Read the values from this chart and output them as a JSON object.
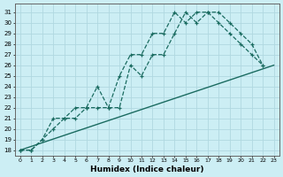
{
  "xlabel": "Humidex (Indice chaleur)",
  "bg_color": "#cceef4",
  "line_color": "#1a6b60",
  "grid_color": "#b0d8e0",
  "xlim": [
    -0.5,
    23.5
  ],
  "ylim": [
    17.5,
    31.8
  ],
  "xticks": [
    0,
    1,
    2,
    3,
    4,
    5,
    6,
    7,
    8,
    9,
    10,
    11,
    12,
    13,
    14,
    15,
    16,
    17,
    18,
    19,
    20,
    21,
    22,
    23
  ],
  "yticks": [
    18,
    19,
    20,
    21,
    22,
    23,
    24,
    25,
    26,
    27,
    28,
    29,
    30,
    31
  ],
  "series": [
    {
      "x": [
        0,
        23
      ],
      "y": [
        18,
        26
      ],
      "marker": false,
      "linestyle": "-"
    },
    {
      "x": [
        0,
        1,
        2,
        3,
        4,
        5,
        6,
        7,
        8,
        9,
        10,
        11,
        12,
        13,
        14,
        15,
        16,
        17,
        18,
        19,
        20,
        21,
        22
      ],
      "y": [
        18,
        18,
        19,
        21,
        21,
        22,
        22,
        24,
        22,
        25,
        27,
        27,
        29,
        29,
        31,
        30,
        31,
        31,
        30,
        29,
        28,
        27,
        26
      ],
      "marker": true,
      "linestyle": "--"
    },
    {
      "x": [
        0,
        1,
        2,
        3,
        4,
        5,
        6,
        7,
        8,
        9,
        10,
        11,
        12,
        13,
        14,
        15,
        16,
        17,
        18,
        19,
        20,
        21,
        22
      ],
      "y": [
        18,
        18,
        19,
        20,
        21,
        21,
        22,
        22,
        22,
        22,
        26,
        25,
        27,
        27,
        29,
        31,
        30,
        31,
        31,
        30,
        29,
        28,
        26
      ],
      "marker": true,
      "linestyle": "--"
    }
  ]
}
